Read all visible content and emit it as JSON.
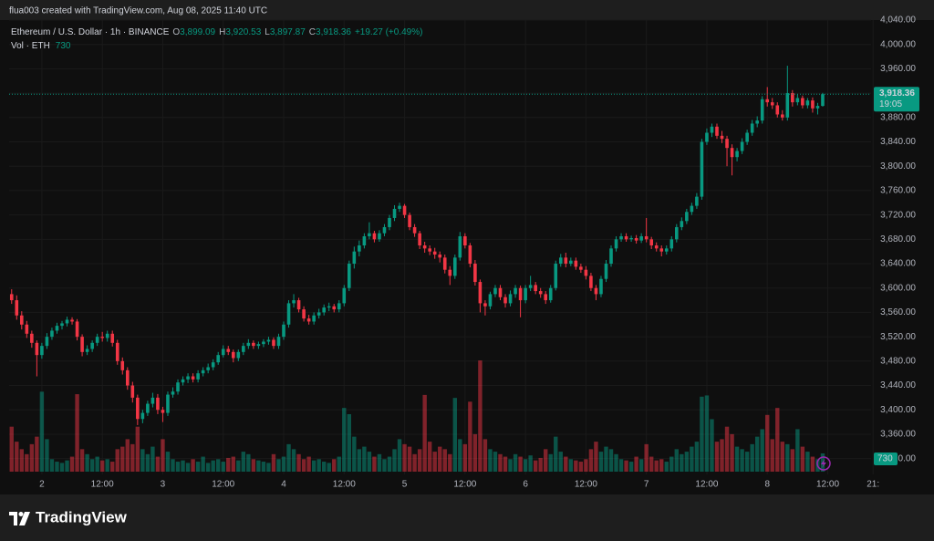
{
  "header": {
    "credit": "flua003 created with TradingView.com, Aug 08, 2025 11:40 UTC",
    "brand": "TradingView"
  },
  "chart_data": {
    "type": "candlestick",
    "title": "Ethereum / U.S. Dollar · 1h · BINANCE",
    "legend": [
      {
        "label": "O",
        "value": "3,899.09"
      },
      {
        "label": "H",
        "value": "3,920.53"
      },
      {
        "label": "L",
        "value": "3,897.87"
      },
      {
        "label": "C",
        "value": "3,918.36"
      }
    ],
    "change": "+19.27 (+0.49%)",
    "volume_title": "Vol · ETH",
    "last_volume_label": "730",
    "countdown": "19:05",
    "up_color": "#089981",
    "down_color": "#f23645",
    "grid": true,
    "xlim": [
      -0.5,
      170.6
    ],
    "xticks": [
      {
        "value": 6,
        "label": "2"
      },
      {
        "value": 18,
        "label": "12:00"
      },
      {
        "value": 30,
        "label": "3"
      },
      {
        "value": 42,
        "label": "12:00"
      },
      {
        "value": 54,
        "label": "4"
      },
      {
        "value": 66,
        "label": "12:00"
      },
      {
        "value": 78,
        "label": "5"
      },
      {
        "value": 90,
        "label": "12:00"
      },
      {
        "value": 102,
        "label": "6"
      },
      {
        "value": 114,
        "label": "12:00"
      },
      {
        "value": 126,
        "label": "7"
      },
      {
        "value": 138,
        "label": "12:00"
      },
      {
        "value": 150,
        "label": "8"
      },
      {
        "value": 162,
        "label": "12:00"
      },
      {
        "value": 171,
        "label": "21:"
      }
    ],
    "ylim": [
      3294,
      4040
    ],
    "yticks": [
      {
        "value": 3320,
        "label": "3,320.00"
      },
      {
        "value": 3360,
        "label": "3,360.00"
      },
      {
        "value": 3400,
        "label": "3,400.00"
      },
      {
        "value": 3440,
        "label": "3,440.00"
      },
      {
        "value": 3480,
        "label": "3,480.00"
      },
      {
        "value": 3520,
        "label": "3,520.00"
      },
      {
        "value": 3560,
        "label": "3,560.00"
      },
      {
        "value": 3600,
        "label": "3,600.00"
      },
      {
        "value": 3640,
        "label": "3,640.00"
      },
      {
        "value": 3680,
        "label": "3,680.00"
      },
      {
        "value": 3720,
        "label": "3,720.00"
      },
      {
        "value": 3760,
        "label": "3,760.00"
      },
      {
        "value": 3800,
        "label": "3,800.00"
      },
      {
        "value": 3840,
        "label": "3,840.00"
      },
      {
        "value": 3880,
        "label": "3,880.00"
      },
      {
        "value": 3920,
        "label": "3,920.00"
      },
      {
        "value": 3960,
        "label": "3,960.00"
      },
      {
        "value": 4000,
        "label": "4,000.00"
      },
      {
        "value": 4040,
        "label": "4,040.00"
      }
    ],
    "open": [
      3590,
      3580,
      3555,
      3540,
      3525,
      3510,
      3490,
      3505,
      3520,
      3530,
      3538,
      3542,
      3548,
      3545,
      3520,
      3495,
      3500,
      3510,
      3520,
      3518,
      3525,
      3510,
      3480,
      3465,
      3440,
      3420,
      3385,
      3395,
      3410,
      3420,
      3400,
      3395,
      3425,
      3430,
      3445,
      3450,
      3455,
      3450,
      3460,
      3465,
      3470,
      3478,
      3490,
      3500,
      3495,
      3485,
      3495,
      3505,
      3510,
      3505,
      3508,
      3512,
      3515,
      3505,
      3520,
      3540,
      3575,
      3580,
      3565,
      3550,
      3545,
      3555,
      3560,
      3568,
      3570,
      3565,
      3575,
      3600,
      3640,
      3660,
      3670,
      3685,
      3690,
      3680,
      3690,
      3700,
      3715,
      3730,
      3735,
      3720,
      3700,
      3690,
      3670,
      3665,
      3660,
      3655,
      3650,
      3630,
      3620,
      3650,
      3685,
      3670,
      3640,
      3610,
      3575,
      3570,
      3590,
      3600,
      3585,
      3575,
      3590,
      3600,
      3580,
      3600,
      3605,
      3595,
      3590,
      3580,
      3600,
      3640,
      3650,
      3640,
      3645,
      3635,
      3630,
      3620,
      3600,
      3590,
      3615,
      3640,
      3665,
      3680,
      3685,
      3680,
      3682,
      3678,
      3685,
      3680,
      3670,
      3665,
      3660,
      3665,
      3680,
      3700,
      3710,
      3725,
      3735,
      3750,
      3840,
      3855,
      3865,
      3850,
      3845,
      3830,
      3815,
      3825,
      3840,
      3855,
      3870,
      3875,
      3910,
      3905,
      3900,
      3885,
      3880,
      3920,
      3905,
      3912,
      3900,
      3908,
      3895,
      3899.09
    ],
    "high": [
      3598,
      3588,
      3562,
      3546,
      3530,
      3514,
      3510,
      3526,
      3535,
      3543,
      3546,
      3553,
      3552,
      3549,
      3524,
      3506,
      3514,
      3525,
      3528,
      3530,
      3530,
      3515,
      3486,
      3470,
      3446,
      3425,
      3400,
      3415,
      3428,
      3426,
      3405,
      3430,
      3437,
      3450,
      3455,
      3460,
      3460,
      3465,
      3470,
      3476,
      3483,
      3495,
      3506,
      3505,
      3499,
      3499,
      3510,
      3516,
      3514,
      3512,
      3516,
      3520,
      3519,
      3525,
      3545,
      3580,
      3590,
      3584,
      3570,
      3556,
      3560,
      3566,
      3573,
      3576,
      3574,
      3580,
      3605,
      3645,
      3668,
      3678,
      3690,
      3708,
      3694,
      3695,
      3705,
      3720,
      3736,
      3740,
      3738,
      3724,
      3705,
      3694,
      3676,
      3670,
      3666,
      3660,
      3655,
      3636,
      3655,
      3692,
      3690,
      3674,
      3646,
      3614,
      3580,
      3594,
      3605,
      3605,
      3590,
      3596,
      3605,
      3604,
      3605,
      3620,
      3610,
      3600,
      3595,
      3605,
      3645,
      3656,
      3658,
      3650,
      3650,
      3640,
      3636,
      3625,
      3605,
      3620,
      3646,
      3670,
      3685,
      3690,
      3690,
      3686,
      3687,
      3690,
      3715,
      3684,
      3675,
      3670,
      3670,
      3685,
      3705,
      3716,
      3730,
      3740,
      3756,
      3845,
      3862,
      3870,
      3870,
      3858,
      3850,
      3836,
      3830,
      3846,
      3860,
      3876,
      3882,
      3915,
      3930,
      3912,
      3905,
      3892,
      3965,
      3925,
      3918,
      3916,
      3912,
      3913,
      3904,
      3920.53
    ],
    "low": [
      3574,
      3548,
      3532,
      3518,
      3502,
      3455,
      3484,
      3500,
      3515,
      3525,
      3532,
      3537,
      3540,
      3514,
      3488,
      3490,
      3495,
      3505,
      3512,
      3512,
      3504,
      3474,
      3458,
      3433,
      3412,
      3375,
      3378,
      3390,
      3404,
      3393,
      3380,
      3390,
      3420,
      3425,
      3440,
      3444,
      3445,
      3445,
      3455,
      3460,
      3465,
      3474,
      3486,
      3490,
      3478,
      3480,
      3490,
      3500,
      3500,
      3500,
      3503,
      3507,
      3500,
      3500,
      3515,
      3535,
      3568,
      3560,
      3545,
      3540,
      3540,
      3550,
      3555,
      3562,
      3560,
      3560,
      3570,
      3595,
      3632,
      3652,
      3665,
      3680,
      3675,
      3676,
      3685,
      3695,
      3710,
      3725,
      3715,
      3695,
      3684,
      3664,
      3658,
      3654,
      3648,
      3642,
      3624,
      3605,
      3615,
      3645,
      3665,
      3634,
      3604,
      3560,
      3555,
      3565,
      3585,
      3580,
      3568,
      3570,
      3584,
      3552,
      3575,
      3595,
      3590,
      3584,
      3574,
      3576,
      3596,
      3635,
      3634,
      3636,
      3630,
      3625,
      3614,
      3595,
      3580,
      3585,
      3610,
      3635,
      3660,
      3676,
      3676,
      3676,
      3673,
      3674,
      3675,
      3664,
      3660,
      3652,
      3655,
      3660,
      3675,
      3695,
      3705,
      3720,
      3730,
      3745,
      3835,
      3848,
      3845,
      3838,
      3800,
      3785,
      3808,
      3820,
      3835,
      3850,
      3864,
      3870,
      3898,
      3894,
      3880,
      3875,
      3875,
      3898,
      3900,
      3895,
      3895,
      3888,
      3885,
      3897.87
    ],
    "close": [
      3580,
      3555,
      3540,
      3525,
      3510,
      3490,
      3505,
      3520,
      3530,
      3538,
      3542,
      3548,
      3545,
      3520,
      3495,
      3500,
      3510,
      3520,
      3518,
      3525,
      3510,
      3480,
      3465,
      3440,
      3420,
      3385,
      3395,
      3410,
      3420,
      3400,
      3395,
      3425,
      3430,
      3445,
      3450,
      3455,
      3450,
      3460,
      3465,
      3470,
      3478,
      3490,
      3500,
      3495,
      3485,
      3495,
      3505,
      3510,
      3505,
      3508,
      3512,
      3515,
      3505,
      3520,
      3540,
      3575,
      3580,
      3565,
      3550,
      3545,
      3555,
      3560,
      3568,
      3570,
      3565,
      3575,
      3600,
      3640,
      3660,
      3670,
      3685,
      3690,
      3680,
      3690,
      3700,
      3715,
      3730,
      3735,
      3720,
      3700,
      3690,
      3670,
      3665,
      3660,
      3655,
      3650,
      3630,
      3620,
      3650,
      3685,
      3670,
      3640,
      3610,
      3575,
      3570,
      3590,
      3600,
      3585,
      3575,
      3590,
      3600,
      3580,
      3600,
      3605,
      3595,
      3590,
      3580,
      3600,
      3640,
      3650,
      3640,
      3645,
      3635,
      3630,
      3620,
      3600,
      3590,
      3615,
      3640,
      3665,
      3680,
      3685,
      3680,
      3682,
      3678,
      3685,
      3680,
      3670,
      3665,
      3660,
      3665,
      3680,
      3700,
      3710,
      3725,
      3735,
      3750,
      3840,
      3855,
      3865,
      3850,
      3845,
      3830,
      3815,
      3825,
      3840,
      3855,
      3870,
      3875,
      3910,
      3905,
      3900,
      3885,
      3880,
      3920,
      3905,
      3912,
      3900,
      3908,
      3895,
      3899.09,
      3918.36
    ],
    "volume": [
      1800,
      1200,
      900,
      700,
      1100,
      1400,
      3200,
      1300,
      500,
      400,
      350,
      450,
      600,
      3100,
      900,
      700,
      500,
      600,
      450,
      500,
      400,
      900,
      1000,
      1300,
      1100,
      1800,
      900,
      700,
      1000,
      600,
      1300,
      800,
      500,
      400,
      450,
      350,
      500,
      400,
      600,
      350,
      450,
      500,
      400,
      550,
      600,
      450,
      800,
      700,
      500,
      450,
      400,
      350,
      700,
      500,
      600,
      1100,
      900,
      700,
      500,
      600,
      450,
      500,
      400,
      350,
      500,
      600,
      2550,
      2300,
      1400,
      900,
      1000,
      800,
      600,
      700,
      500,
      600,
      900,
      1300,
      1100,
      1000,
      700,
      900,
      3070,
      1200,
      800,
      1000,
      900,
      700,
      2950,
      1300,
      1100,
      2800,
      1500,
      4450,
      1300,
      900,
      800,
      700,
      600,
      500,
      700,
      600,
      500,
      650,
      450,
      550,
      900,
      700,
      1400,
      800,
      600,
      500,
      450,
      400,
      500,
      900,
      1200,
      800,
      1000,
      900,
      700,
      500,
      450,
      400,
      600,
      500,
      1100,
      600,
      450,
      500,
      400,
      600,
      900,
      700,
      800,
      1000,
      1200,
      3000,
      3050,
      2100,
      1200,
      1300,
      1800,
      1500,
      1000,
      900,
      800,
      1100,
      1400,
      1700,
      2270,
      1300,
      2550,
      1200,
      1100,
      900,
      1700,
      1000,
      800,
      600,
      500,
      730
    ]
  }
}
